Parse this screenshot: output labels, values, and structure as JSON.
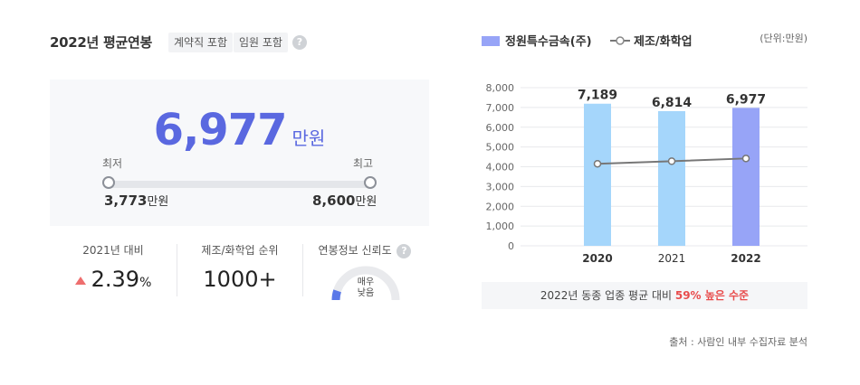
{
  "header": {
    "title": "2022년 평균연봉",
    "tags": [
      "계약직 포함",
      "임원 포함"
    ],
    "help_icon": "question-icon"
  },
  "salary": {
    "amount": "6,977",
    "unit": "만원",
    "min_label": "최저",
    "max_label": "최고",
    "min_value": "3,773",
    "max_value": "8,600",
    "value_unit": "만원"
  },
  "stats": {
    "yoy_label": "2021년 대비",
    "yoy_value": "2.39",
    "yoy_unit": "%",
    "yoy_direction_icon": "triangle-up-icon",
    "rank_label": "제조/화학업 순위",
    "rank_value": "1000+",
    "reliability_label": "연봉정보 신뢰도",
    "reliability_value_line1": "매우",
    "reliability_value_line2": "낮음",
    "reliability_level": 0.1
  },
  "legend": {
    "bar_series": "정원특수금속(주)",
    "line_series": "제조/화학업",
    "unit_note": "(단위:만원)"
  },
  "chart_data": {
    "type": "bar",
    "categories": [
      "2020",
      "2021",
      "2022"
    ],
    "series": [
      {
        "name": "정원특수금속(주)",
        "values": [
          7189,
          6814,
          6977
        ],
        "labels": [
          "7,189",
          "6,814",
          "6,977"
        ],
        "colors": [
          "#a5d6fb",
          "#a5d6fb",
          "#97a4f7"
        ]
      },
      {
        "name": "제조/화학업",
        "type": "line",
        "values": [
          4150,
          4280,
          4420
        ],
        "color": "#777777"
      }
    ],
    "yticks": [
      "8,000",
      "7,000",
      "6,000",
      "5,000",
      "4,000",
      "3,000",
      "2,000",
      "1,000",
      "0"
    ],
    "ylim": [
      0,
      8000
    ],
    "grid": true
  },
  "notice": {
    "prefix": "2022년 동종 업종 평균 대비 ",
    "highlight": "59% 높은 수준"
  },
  "source": "출처 : 사람인 내부 수집자료 분석"
}
